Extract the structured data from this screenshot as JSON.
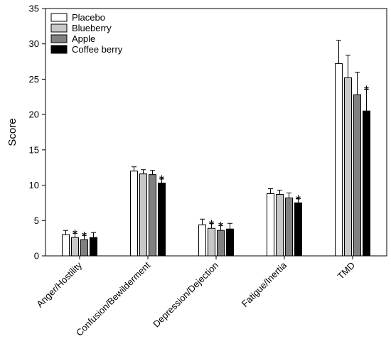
{
  "chart_data": {
    "type": "bar",
    "ylabel": "Score",
    "xlabel": "",
    "ylim": [
      0,
      35
    ],
    "yticks": [
      0,
      5,
      10,
      15,
      20,
      25,
      30,
      35
    ],
    "categories": [
      "Anger/Hostility",
      "Confusion/Bewilderment",
      "Depression/Dejection",
      "Fatigue/Inertia",
      "TMD"
    ],
    "significance_marker": "*",
    "legend_position": "top-left",
    "series": [
      {
        "name": "Placebo",
        "color": "#ffffff",
        "values": [
          3.0,
          12.0,
          4.4,
          8.8,
          27.2
        ],
        "errors": [
          0.6,
          0.6,
          0.8,
          0.7,
          3.3
        ],
        "significant": [
          false,
          false,
          false,
          false,
          false
        ]
      },
      {
        "name": "Blueberry",
        "color": "#c8c8c8",
        "values": [
          2.6,
          11.6,
          3.9,
          8.7,
          25.2
        ],
        "errors": [
          0.6,
          0.6,
          0.7,
          0.6,
          3.2
        ],
        "significant": [
          true,
          false,
          true,
          false,
          false
        ]
      },
      {
        "name": "Apple",
        "color": "#808080",
        "values": [
          2.3,
          11.5,
          3.6,
          8.2,
          22.8
        ],
        "errors": [
          0.6,
          0.6,
          0.7,
          0.7,
          3.2
        ],
        "significant": [
          true,
          false,
          true,
          false,
          false
        ]
      },
      {
        "name": "Coffee berry",
        "color": "#000000",
        "values": [
          2.6,
          10.3,
          3.8,
          7.5,
          20.5
        ],
        "errors": [
          0.7,
          0.6,
          0.8,
          0.6,
          3.1
        ],
        "significant": [
          false,
          true,
          false,
          true,
          true
        ]
      }
    ]
  }
}
